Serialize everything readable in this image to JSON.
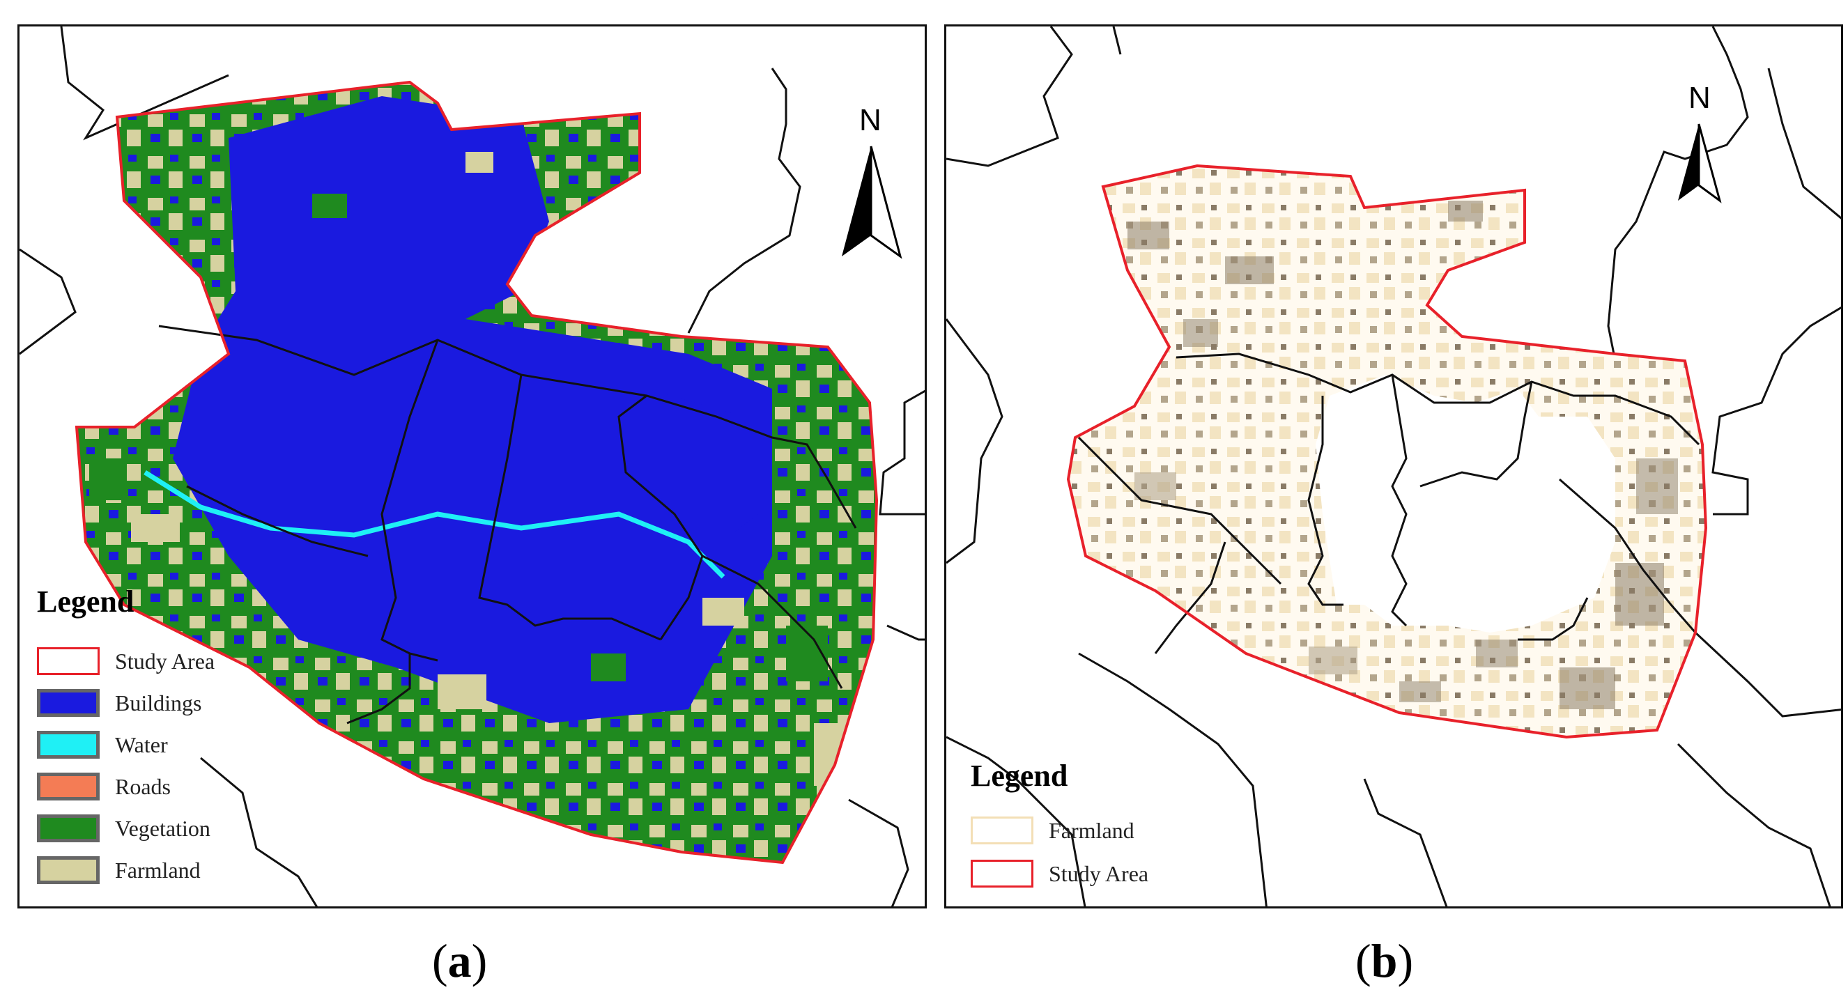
{
  "panels": [
    {
      "caption_letter": "a",
      "north_label": "N",
      "legend": {
        "title": "Legend",
        "items": [
          {
            "label": "Study Area",
            "fill": "#ffffff",
            "border": "#e8212a"
          },
          {
            "label": "Buildings",
            "fill": "#1a1adf",
            "border": "#666666"
          },
          {
            "label": "Water",
            "fill": "#1ff0f5",
            "border": "#666666"
          },
          {
            "label": "Roads",
            "fill": "#f47c55",
            "border": "#666666"
          },
          {
            "label": "Vegetation",
            "fill": "#1f8a1f",
            "border": "#666666"
          },
          {
            "label": "Farmland",
            "fill": "#d6d2a0",
            "border": "#666666"
          }
        ]
      }
    },
    {
      "caption_letter": "b",
      "north_label": "N",
      "legend": {
        "title": "Legend",
        "items": [
          {
            "label": "Farmland",
            "fill": "#ffffff",
            "border": "#f3dfb6"
          },
          {
            "label": "Study Area",
            "fill": "#ffffff",
            "border": "#e8212a"
          }
        ]
      }
    }
  ],
  "colors": {
    "study_area_outline": "#e8212a",
    "buildings": "#1a1adf",
    "water": "#1ff0f5",
    "vegetation": "#1f8a1f",
    "farmland": "#d6d2a0",
    "farmland_light": "#f3e4c2",
    "farmland_dark": "#8a7b66",
    "boundary_lines": "#111111"
  }
}
